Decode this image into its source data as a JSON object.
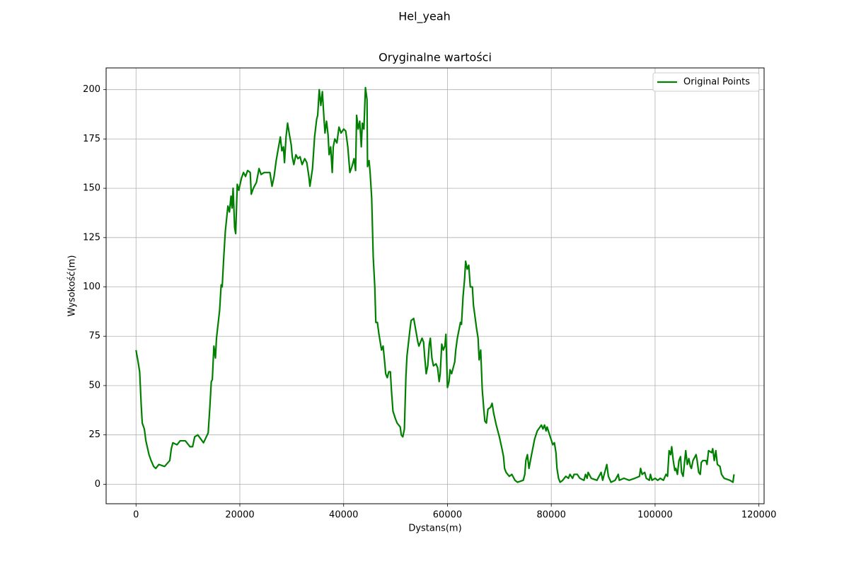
{
  "chart_data": {
    "type": "line",
    "suptitle": "Hel_yeah",
    "title": "Oryginalne wartości",
    "x_label": "Dystans(m)",
    "y_label": "Wysokość(m)",
    "xlim": [
      -5760,
      121000
    ],
    "ylim": [
      -9.9,
      211
    ],
    "xticks": [
      0,
      20000,
      40000,
      60000,
      80000,
      100000,
      120000
    ],
    "yticks": [
      0,
      25,
      50,
      75,
      100,
      125,
      150,
      175,
      200
    ],
    "grid": true,
    "legend": "upper right",
    "x": [
      0,
      400,
      700,
      1000,
      1200,
      1600,
      1900,
      2500,
      2900,
      3400,
      3800,
      4400,
      5500,
      6500,
      6800,
      7100,
      7900,
      8500,
      9500,
      10400,
      10900,
      11300,
      11900,
      13000,
      13900,
      14200,
      14500,
      14700,
      15000,
      15300,
      15500,
      16100,
      16400,
      16600,
      16900,
      17200,
      17700,
      18000,
      18300,
      18500,
      18700,
      19000,
      19200,
      19500,
      19800,
      20300,
      20700,
      21100,
      21500,
      22000,
      22200,
      22600,
      23200,
      23700,
      24100,
      24700,
      25800,
      26200,
      26600,
      27000,
      27400,
      27800,
      28100,
      28400,
      28600,
      28900,
      29200,
      29500,
      29900,
      30100,
      30400,
      30800,
      31200,
      31600,
      32000,
      32500,
      32900,
      33300,
      33500,
      34000,
      34400,
      34800,
      35000,
      35300,
      35600,
      35900,
      36100,
      36400,
      36700,
      37000,
      37200,
      37500,
      37800,
      38000,
      38300,
      38700,
      39100,
      39500,
      40000,
      40400,
      40800,
      41200,
      41600,
      42000,
      42300,
      42500,
      42800,
      43100,
      43400,
      43600,
      43900,
      44200,
      44500,
      44600,
      44900,
      45100,
      45400,
      45700,
      46000,
      46200,
      46500,
      46800,
      47300,
      47600,
      47900,
      48100,
      48400,
      48700,
      49000,
      49200,
      49500,
      50000,
      50300,
      50900,
      51100,
      51400,
      51700,
      52000,
      52200,
      52500,
      52800,
      53000,
      53500,
      53900,
      54300,
      54500,
      55100,
      55400,
      55600,
      55900,
      56200,
      56500,
      56700,
      57000,
      57300,
      57800,
      58100,
      58400,
      58600,
      58900,
      59200,
      59500,
      59700,
      60000,
      60300,
      60500,
      60800,
      61400,
      61600,
      61900,
      62500,
      62700,
      63000,
      63300,
      63500,
      63800,
      64100,
      64400,
      64800,
      65000,
      65300,
      65600,
      65900,
      66100,
      66400,
      66700,
      67000,
      67200,
      67500,
      67800,
      68300,
      68600,
      68900,
      69400,
      70000,
      70500,
      70800,
      71000,
      71300,
      71900,
      72400,
      73000,
      73500,
      74600,
      74900,
      75100,
      75400,
      75700,
      76200,
      76800,
      77300,
      78100,
      78400,
      78700,
      79000,
      79200,
      79800,
      80300,
      80600,
      80900,
      81100,
      81400,
      81700,
      82200,
      82800,
      83300,
      83600,
      84100,
      84400,
      85000,
      85500,
      86300,
      86600,
      86900,
      87100,
      87700,
      88800,
      89600,
      89900,
      90400,
      90700,
      91000,
      91500,
      92300,
      92900,
      93100,
      94000,
      95000,
      96100,
      97000,
      97200,
      97500,
      98000,
      98300,
      98900,
      99100,
      99400,
      100000,
      100500,
      101000,
      101600,
      102100,
      102400,
      102700,
      103000,
      103200,
      103500,
      103800,
      104000,
      104300,
      104600,
      104900,
      105100,
      105400,
      105900,
      106200,
      106500,
      106800,
      107000,
      107300,
      107900,
      108100,
      108400,
      108700,
      108900,
      109200,
      109800,
      110000,
      110300,
      110900,
      111100,
      111400,
      111700,
      112000,
      112500,
      112800,
      113300,
      114400,
      115000,
      115200
    ],
    "series": [
      {
        "name": "Original Points",
        "color": "#008000",
        "values": [
          68,
          62,
          57,
          40,
          31,
          28,
          22,
          15,
          12,
          9,
          8,
          10,
          9,
          12,
          18,
          21,
          20,
          22,
          22,
          19,
          19,
          24,
          25,
          21,
          26,
          38,
          52,
          53,
          70,
          64,
          74,
          88,
          101,
          100,
          115,
          128,
          141,
          138,
          146,
          140,
          150,
          130,
          127,
          152,
          149,
          155,
          158,
          156,
          159,
          158,
          147,
          150,
          153,
          160,
          157,
          158,
          158,
          151,
          156,
          164,
          170,
          176,
          169,
          171,
          163,
          176,
          183,
          178,
          172,
          166,
          162,
          167,
          165,
          166,
          162,
          165,
          163,
          156,
          151,
          160,
          176,
          185,
          187,
          200,
          192,
          199,
          190,
          178,
          184,
          177,
          167,
          171,
          158,
          171,
          175,
          173,
          181,
          178,
          180,
          179,
          171,
          158,
          161,
          165,
          159,
          187,
          180,
          184,
          171,
          183,
          180,
          201,
          195,
          161,
          164,
          158,
          145,
          115,
          100,
          82,
          82,
          76,
          68,
          70,
          62,
          56,
          54,
          57,
          57,
          48,
          37,
          33,
          31,
          29,
          25,
          24,
          28,
          55,
          65,
          72,
          79,
          83,
          84,
          78,
          72,
          70,
          74,
          72,
          65,
          56,
          60,
          71,
          74,
          64,
          60,
          61,
          59,
          52,
          56,
          71,
          68,
          70,
          76,
          49,
          52,
          58,
          56,
          62,
          68,
          74,
          82,
          81,
          95,
          104,
          113,
          109,
          111,
          100,
          100,
          91,
          85,
          79,
          74,
          63,
          68,
          48,
          38,
          32,
          31,
          38,
          39,
          41,
          36,
          30,
          24,
          18,
          14,
          8,
          6,
          4,
          5,
          2,
          1,
          2,
          5,
          12,
          15,
          8,
          15,
          23,
          27,
          30,
          28,
          30,
          27,
          29,
          24,
          20,
          21,
          16,
          8,
          3,
          1,
          2,
          4,
          3,
          5,
          3,
          5,
          5,
          3,
          2,
          5,
          3,
          6,
          3,
          2,
          6,
          2,
          7,
          10,
          4,
          1,
          2,
          5,
          2,
          3,
          2,
          3,
          4,
          8,
          5,
          6,
          3,
          2,
          5,
          2,
          3,
          2,
          3,
          2,
          5,
          4,
          17,
          15,
          19,
          12,
          7,
          8,
          5,
          12,
          14,
          6,
          4,
          17,
          10,
          13,
          9,
          8,
          12,
          15,
          12,
          6,
          5,
          11,
          12,
          12,
          10,
          17,
          16,
          18,
          12,
          17,
          10,
          9,
          5,
          3,
          2,
          1,
          5
        ]
      }
    ]
  }
}
